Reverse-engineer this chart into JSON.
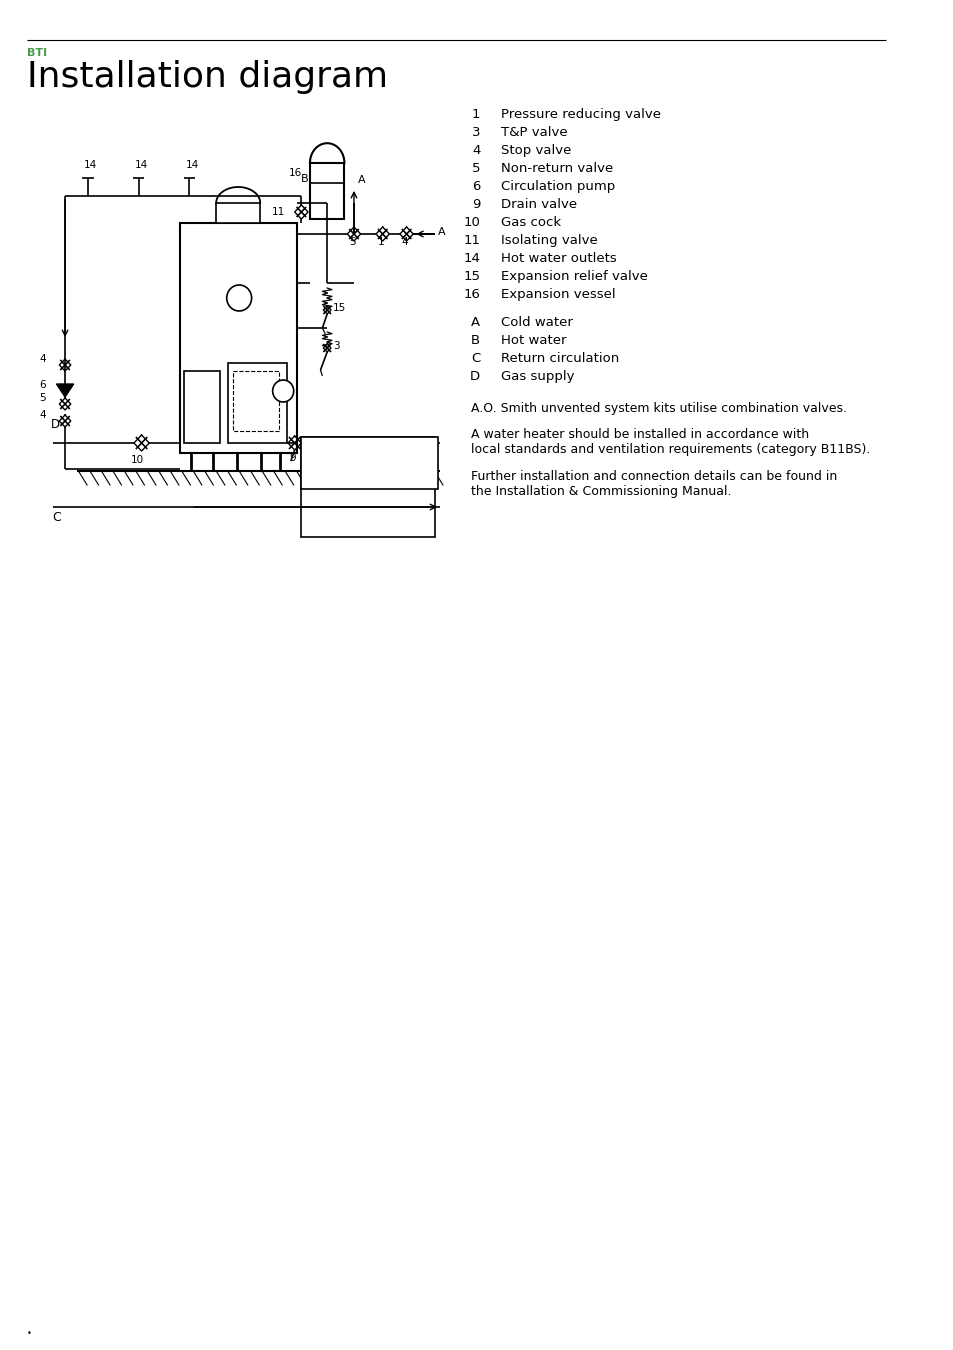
{
  "title": "Installation diagram",
  "subtitle": "BTI",
  "subtitle_color": "#4a9a4a",
  "title_fontsize": 26,
  "subtitle_fontsize": 8,
  "legend_items": [
    {
      "num": "1",
      "text": "Pressure reducing valve"
    },
    {
      "num": "3",
      "text": "T&P valve"
    },
    {
      "num": "4",
      "text": "Stop valve"
    },
    {
      "num": "5",
      "text": "Non-return valve"
    },
    {
      "num": "6",
      "text": "Circulation pump"
    },
    {
      "num": "9",
      "text": "Drain valve"
    },
    {
      "num": "10",
      "text": "Gas cock"
    },
    {
      "num": "11",
      "text": "Isolating valve"
    },
    {
      "num": "14",
      "text": "Hot water outlets"
    },
    {
      "num": "15",
      "text": "Expansion relief valve"
    },
    {
      "num": "16",
      "text": "Expansion vessel"
    }
  ],
  "legend_letters": [
    {
      "letter": "A",
      "text": "Cold water"
    },
    {
      "letter": "B",
      "text": "Hot water"
    },
    {
      "letter": "C",
      "text": "Return circulation"
    },
    {
      "letter": "D",
      "text": "Gas supply"
    }
  ],
  "notes": [
    "A.O. Smith unvented system kits utilise combination valves.",
    "A water heater should be installed in accordance with\nlocal standards and ventilation requirements (category B11BS).",
    "Further installation and connection details can be found in\nthe Installation & Commissioning Manual."
  ],
  "bg_color": "#ffffff",
  "lc": "#000000",
  "teal_color": "#7ec8c0"
}
